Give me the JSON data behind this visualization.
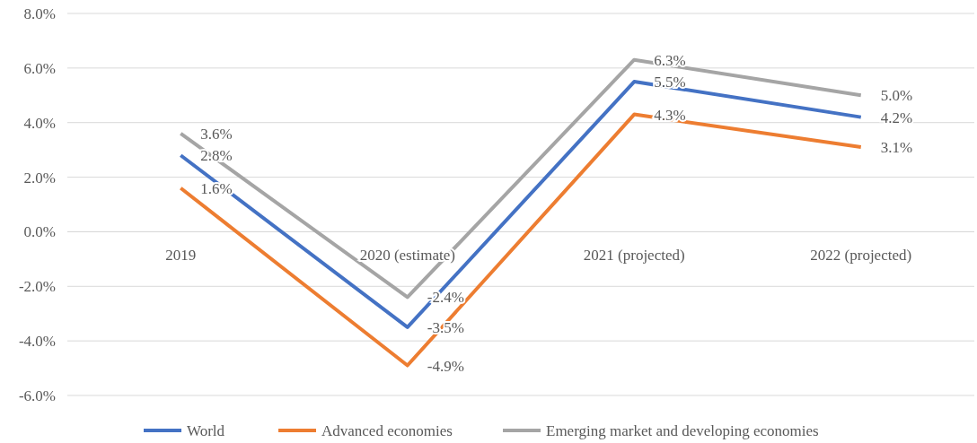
{
  "chart_data": {
    "type": "line",
    "categories": [
      "2019",
      "2020 (estimate)",
      "2021 (projected)",
      "2022 (projected)"
    ],
    "series": [
      {
        "name": "World",
        "color": "#4472c4",
        "values": [
          2.8,
          -3.5,
          5.5,
          4.2
        ],
        "value_labels": [
          "2.8%",
          "-3.5%",
          "5.5%",
          "4.2%"
        ]
      },
      {
        "name": "Advanced economies",
        "color": "#ed7d31",
        "values": [
          1.6,
          -4.9,
          4.3,
          3.1
        ],
        "value_labels": [
          "1.6%",
          "-4.9%",
          "4.3%",
          "3.1%"
        ]
      },
      {
        "name": "Emerging market and developing economies",
        "color": "#a5a5a5",
        "values": [
          3.6,
          -2.4,
          6.3,
          5.0
        ],
        "value_labels": [
          "3.6%",
          "-2.4%",
          "6.3%",
          "5.0%"
        ]
      }
    ],
    "ylim": [
      -6,
      8
    ],
    "yticks": [
      {
        "value": -6,
        "label": "-6.0%"
      },
      {
        "value": -4,
        "label": "-4.0%"
      },
      {
        "value": -2,
        "label": "-2.0%"
      },
      {
        "value": 0,
        "label": "0.0%"
      },
      {
        "value": 2,
        "label": "2.0%"
      },
      {
        "value": 4,
        "label": "4.0%"
      },
      {
        "value": 6,
        "label": "6.0%"
      },
      {
        "value": 8,
        "label": "8.0%"
      }
    ],
    "grid": "y",
    "legend": "bottom",
    "marker": "none",
    "line_style": "solid"
  }
}
